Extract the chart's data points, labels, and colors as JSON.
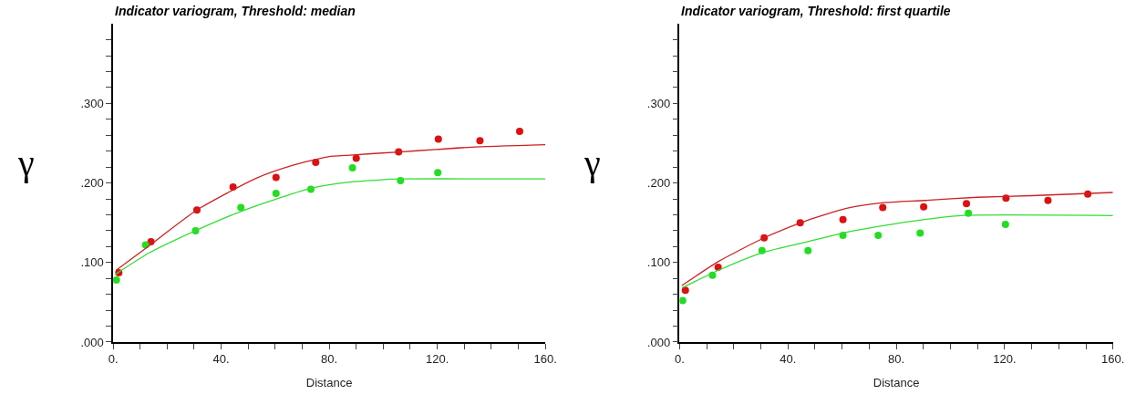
{
  "chart_data": [
    {
      "type": "scatter",
      "title": "Indicator variogram, Threshold: median",
      "xlabel": "Distance",
      "ylabel": "γ",
      "marker": "circle",
      "xlim": [
        0,
        160
      ],
      "ylim": [
        0,
        0.4
      ],
      "xticks": [
        {
          "value": 0,
          "label": "0."
        },
        {
          "value": 10,
          "label": null
        },
        {
          "value": 20,
          "label": null
        },
        {
          "value": 30,
          "label": null
        },
        {
          "value": 40,
          "label": "40."
        },
        {
          "value": 50,
          "label": null
        },
        {
          "value": 60,
          "label": null
        },
        {
          "value": 70,
          "label": null
        },
        {
          "value": 80,
          "label": "80."
        },
        {
          "value": 90,
          "label": null
        },
        {
          "value": 100,
          "label": null
        },
        {
          "value": 110,
          "label": null
        },
        {
          "value": 120,
          "label": "120."
        },
        {
          "value": 130,
          "label": null
        },
        {
          "value": 140,
          "label": null
        },
        {
          "value": 150,
          "label": null
        },
        {
          "value": 160,
          "label": "160."
        }
      ],
      "yticks": [
        {
          "value": 0,
          "label": ".000"
        },
        {
          "value": 0.02,
          "label": null
        },
        {
          "value": 0.04,
          "label": null
        },
        {
          "value": 0.06,
          "label": null
        },
        {
          "value": 0.08,
          "label": null
        },
        {
          "value": 0.1,
          "label": ".100"
        },
        {
          "value": 0.12,
          "label": null
        },
        {
          "value": 0.14,
          "label": null
        },
        {
          "value": 0.16,
          "label": null
        },
        {
          "value": 0.18,
          "label": null
        },
        {
          "value": 0.2,
          "label": ".200"
        },
        {
          "value": 0.22,
          "label": null
        },
        {
          "value": 0.24,
          "label": null
        },
        {
          "value": 0.26,
          "label": null
        },
        {
          "value": 0.28,
          "label": null
        },
        {
          "value": 0.3,
          "label": ".300"
        },
        {
          "value": 0.32,
          "label": null
        },
        {
          "value": 0.34,
          "label": null
        },
        {
          "value": 0.36,
          "label": null
        },
        {
          "value": 0.38,
          "label": null
        }
      ],
      "series": [
        {
          "color": "#dd1111",
          "x": [
            2.1,
            14,
            31,
            44.4,
            60.3,
            75,
            90,
            105.7,
            120.4,
            135.8,
            150.5
          ],
          "values": [
            0.087,
            0.126,
            0.166,
            0.195,
            0.207,
            0.226,
            0.231,
            0.239,
            0.255,
            0.253,
            0.265
          ]
        },
        {
          "color": "#22dd22",
          "x": [
            1.2,
            12,
            30.5,
            47.3,
            60.3,
            73.2,
            88.6,
            106.4,
            120.2
          ],
          "values": [
            0.078,
            0.122,
            0.14,
            0.169,
            0.187,
            0.192,
            0.219,
            0.203,
            0.213
          ]
        },
        {
          "type": "line",
          "color": "#cc2222",
          "marker": "none",
          "x": [
            1,
            13.3,
            31,
            53,
            66.3,
            79.6,
            87.5,
            106,
            119.4,
            132.6,
            160
          ],
          "values": [
            0.09,
            0.121,
            0.166,
            0.206,
            0.222,
            0.233,
            0.235,
            0.239,
            0.242,
            0.245,
            0.248
          ]
        },
        {
          "type": "line",
          "color": "#33dd33",
          "marker": "none",
          "x": [
            0.8,
            13.3,
            30.5,
            46.4,
            59.7,
            73,
            87.5,
            99.5,
            106,
            160
          ],
          "values": [
            0.085,
            0.112,
            0.14,
            0.163,
            0.179,
            0.193,
            0.201,
            0.204,
            0.205,
            0.205
          ]
        }
      ]
    },
    {
      "type": "scatter",
      "title": "Indicator variogram, Threshold: first quartile",
      "xlabel": "Distance",
      "ylabel": "γ",
      "marker": "circle",
      "xlim": [
        0,
        160
      ],
      "ylim": [
        0,
        0.4
      ],
      "xticks": [
        {
          "value": 0,
          "label": "0."
        },
        {
          "value": 10,
          "label": null
        },
        {
          "value": 20,
          "label": null
        },
        {
          "value": 30,
          "label": null
        },
        {
          "value": 40,
          "label": "40."
        },
        {
          "value": 50,
          "label": null
        },
        {
          "value": 60,
          "label": null
        },
        {
          "value": 70,
          "label": null
        },
        {
          "value": 80,
          "label": "80."
        },
        {
          "value": 90,
          "label": null
        },
        {
          "value": 100,
          "label": null
        },
        {
          "value": 110,
          "label": null
        },
        {
          "value": 120,
          "label": "120."
        },
        {
          "value": 130,
          "label": null
        },
        {
          "value": 140,
          "label": null
        },
        {
          "value": 150,
          "label": null
        },
        {
          "value": 160,
          "label": "160."
        }
      ],
      "yticks": [
        {
          "value": 0,
          "label": ".000"
        },
        {
          "value": 0.02,
          "label": null
        },
        {
          "value": 0.04,
          "label": null
        },
        {
          "value": 0.06,
          "label": null
        },
        {
          "value": 0.08,
          "label": null
        },
        {
          "value": 0.1,
          "label": ".100"
        },
        {
          "value": 0.12,
          "label": null
        },
        {
          "value": 0.14,
          "label": null
        },
        {
          "value": 0.16,
          "label": null
        },
        {
          "value": 0.18,
          "label": null
        },
        {
          "value": 0.2,
          "label": ".200"
        },
        {
          "value": 0.22,
          "label": null
        },
        {
          "value": 0.24,
          "label": null
        },
        {
          "value": 0.26,
          "label": null
        },
        {
          "value": 0.28,
          "label": null
        },
        {
          "value": 0.3,
          "label": ".300"
        },
        {
          "value": 0.32,
          "label": null
        },
        {
          "value": 0.34,
          "label": null
        },
        {
          "value": 0.36,
          "label": null
        },
        {
          "value": 0.38,
          "label": null
        }
      ],
      "series": [
        {
          "color": "#dd1111",
          "x": [
            2.1,
            14.2,
            31.2,
            44.5,
            60.3,
            75,
            90.1,
            105.9,
            120.5,
            136,
            150.7
          ],
          "values": [
            0.065,
            0.094,
            0.131,
            0.15,
            0.154,
            0.169,
            0.17,
            0.174,
            0.181,
            0.178,
            0.186
          ]
        },
        {
          "color": "#22dd22",
          "x": [
            1.1,
            12.1,
            30.4,
            47.4,
            60.3,
            73.3,
            88.8,
            106.6,
            120.3
          ],
          "values": [
            0.052,
            0.084,
            0.115,
            0.115,
            0.134,
            0.134,
            0.137,
            0.162,
            0.148
          ]
        },
        {
          "type": "line",
          "color": "#cc2222",
          "marker": "none",
          "x": [
            0.8,
            14.2,
            31.2,
            47.1,
            61.6,
            74.7,
            90.5,
            110,
            130,
            160
          ],
          "values": [
            0.071,
            0.101,
            0.131,
            0.153,
            0.168,
            0.175,
            0.178,
            0.182,
            0.184,
            0.188
          ]
        },
        {
          "type": "line",
          "color": "#33dd33",
          "marker": "none",
          "x": [
            0.8,
            14.2,
            31.2,
            47.1,
            61.6,
            74.7,
            90.5,
            103.7,
            160
          ],
          "values": [
            0.068,
            0.09,
            0.113,
            0.126,
            0.138,
            0.146,
            0.154,
            0.159,
            0.159
          ]
        }
      ]
    }
  ]
}
